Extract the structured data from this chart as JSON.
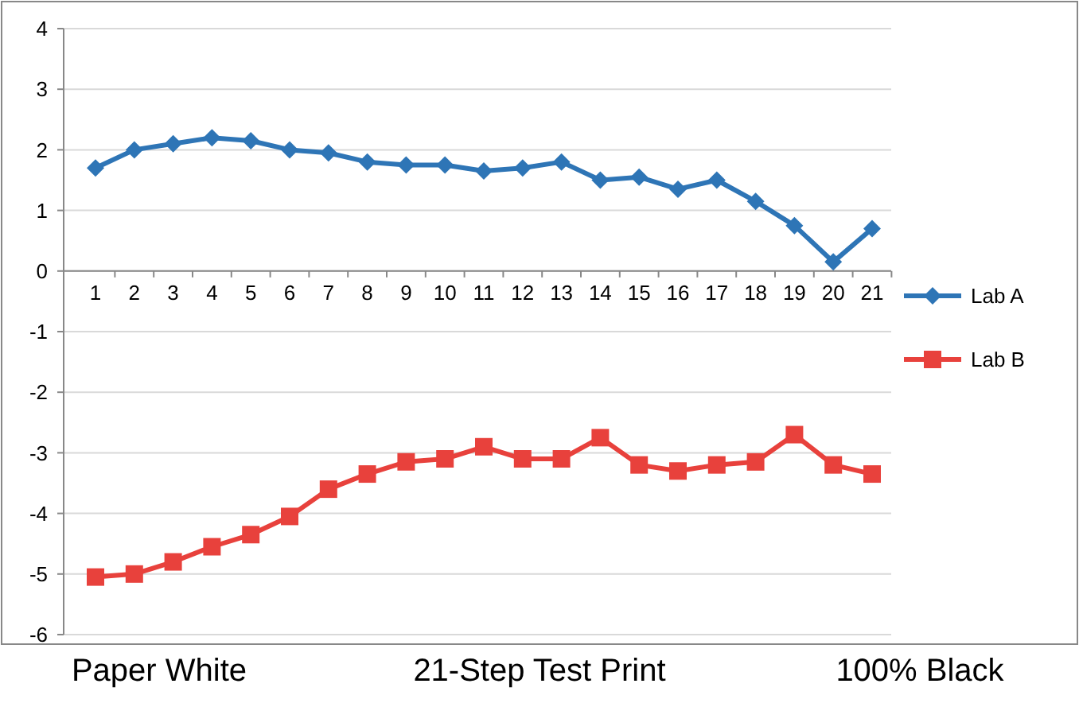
{
  "chart_data": {
    "type": "line",
    "categories": [
      "1",
      "2",
      "3",
      "4",
      "5",
      "6",
      "7",
      "8",
      "9",
      "10",
      "11",
      "12",
      "13",
      "14",
      "15",
      "16",
      "17",
      "18",
      "19",
      "20",
      "21"
    ],
    "series": [
      {
        "name": "Lab A",
        "color": "#2e75b6",
        "marker": "diamond",
        "values": [
          1.7,
          2.0,
          2.1,
          2.2,
          2.15,
          2.0,
          1.95,
          1.8,
          1.75,
          1.75,
          1.65,
          1.7,
          1.8,
          1.5,
          1.55,
          1.35,
          1.5,
          1.15,
          0.75,
          0.15,
          0.7
        ]
      },
      {
        "name": "Lab B",
        "color": "#e8413c",
        "marker": "square",
        "values": [
          -5.05,
          -5.0,
          -4.8,
          -4.55,
          -4.35,
          -4.05,
          -3.6,
          -3.35,
          -3.15,
          -3.1,
          -2.9,
          -3.1,
          -3.1,
          -2.75,
          -3.2,
          -3.3,
          -3.2,
          -3.15,
          -2.7,
          -3.2,
          -3.35
        ]
      }
    ],
    "ylim": [
      -6,
      4
    ],
    "yticks": [
      -6,
      -5,
      -4,
      -3,
      -2,
      -1,
      0,
      1,
      2,
      3,
      4
    ],
    "grid": "y",
    "legend": "right",
    "line_style": "solid",
    "annotations": [
      "Paper White",
      "21-Step Test Print",
      "100% Black"
    ]
  }
}
